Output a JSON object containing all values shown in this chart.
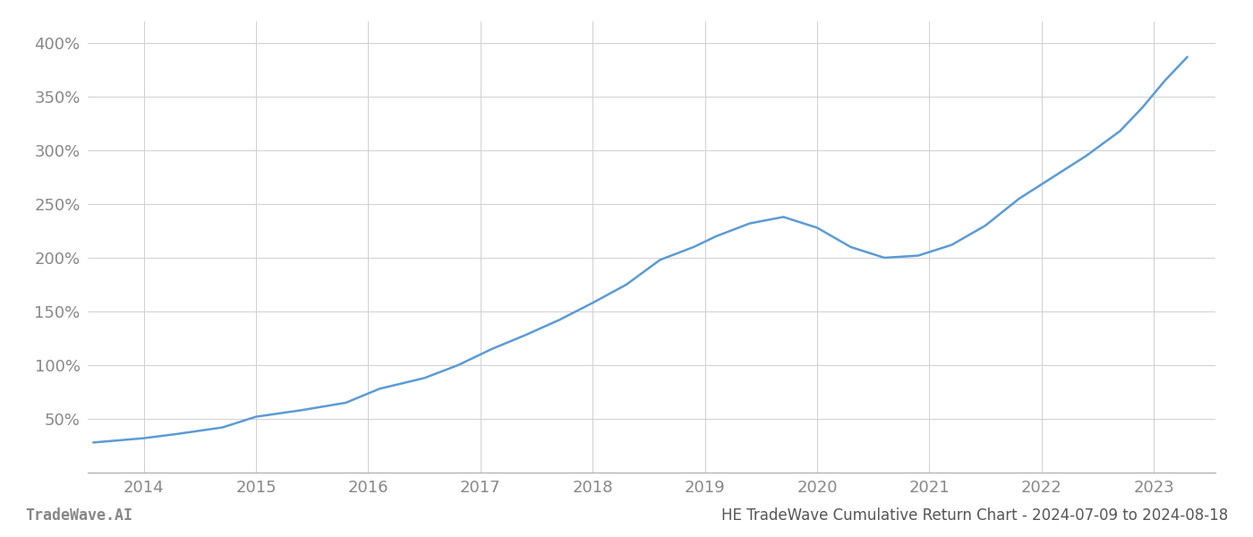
{
  "x_values": [
    2013.55,
    2014.0,
    2014.3,
    2014.7,
    2015.0,
    2015.4,
    2015.8,
    2016.1,
    2016.5,
    2016.8,
    2017.1,
    2017.4,
    2017.7,
    2018.0,
    2018.3,
    2018.6,
    2018.9,
    2019.1,
    2019.4,
    2019.7,
    2020.0,
    2020.3,
    2020.6,
    2020.9,
    2021.2,
    2021.5,
    2021.8,
    2022.1,
    2022.4,
    2022.7,
    2022.9,
    2023.1,
    2023.3
  ],
  "y_values": [
    28,
    32,
    36,
    42,
    52,
    58,
    65,
    78,
    88,
    100,
    115,
    128,
    142,
    158,
    175,
    198,
    210,
    220,
    232,
    238,
    228,
    210,
    200,
    202,
    212,
    230,
    255,
    275,
    295,
    318,
    340,
    365,
    387
  ],
  "line_color": "#5b9bd5",
  "line_width": 1.8,
  "background_color": "#ffffff",
  "grid_color": "#d0d0d0",
  "tick_color": "#888888",
  "footer_left": "TradeWave.AI",
  "footer_right": "HE TradeWave Cumulative Return Chart - 2024-07-09 to 2024-08-18",
  "footer_color": "#888888",
  "footer_right_color": "#555555",
  "xlim": [
    2013.5,
    2023.55
  ],
  "ylim": [
    0,
    420
  ],
  "yticks": [
    50,
    100,
    150,
    200,
    250,
    300,
    350,
    400
  ],
  "xticks": [
    2014,
    2015,
    2016,
    2017,
    2018,
    2019,
    2020,
    2021,
    2022,
    2023
  ],
  "tick_fontsize": 13,
  "footer_fontsize": 12
}
